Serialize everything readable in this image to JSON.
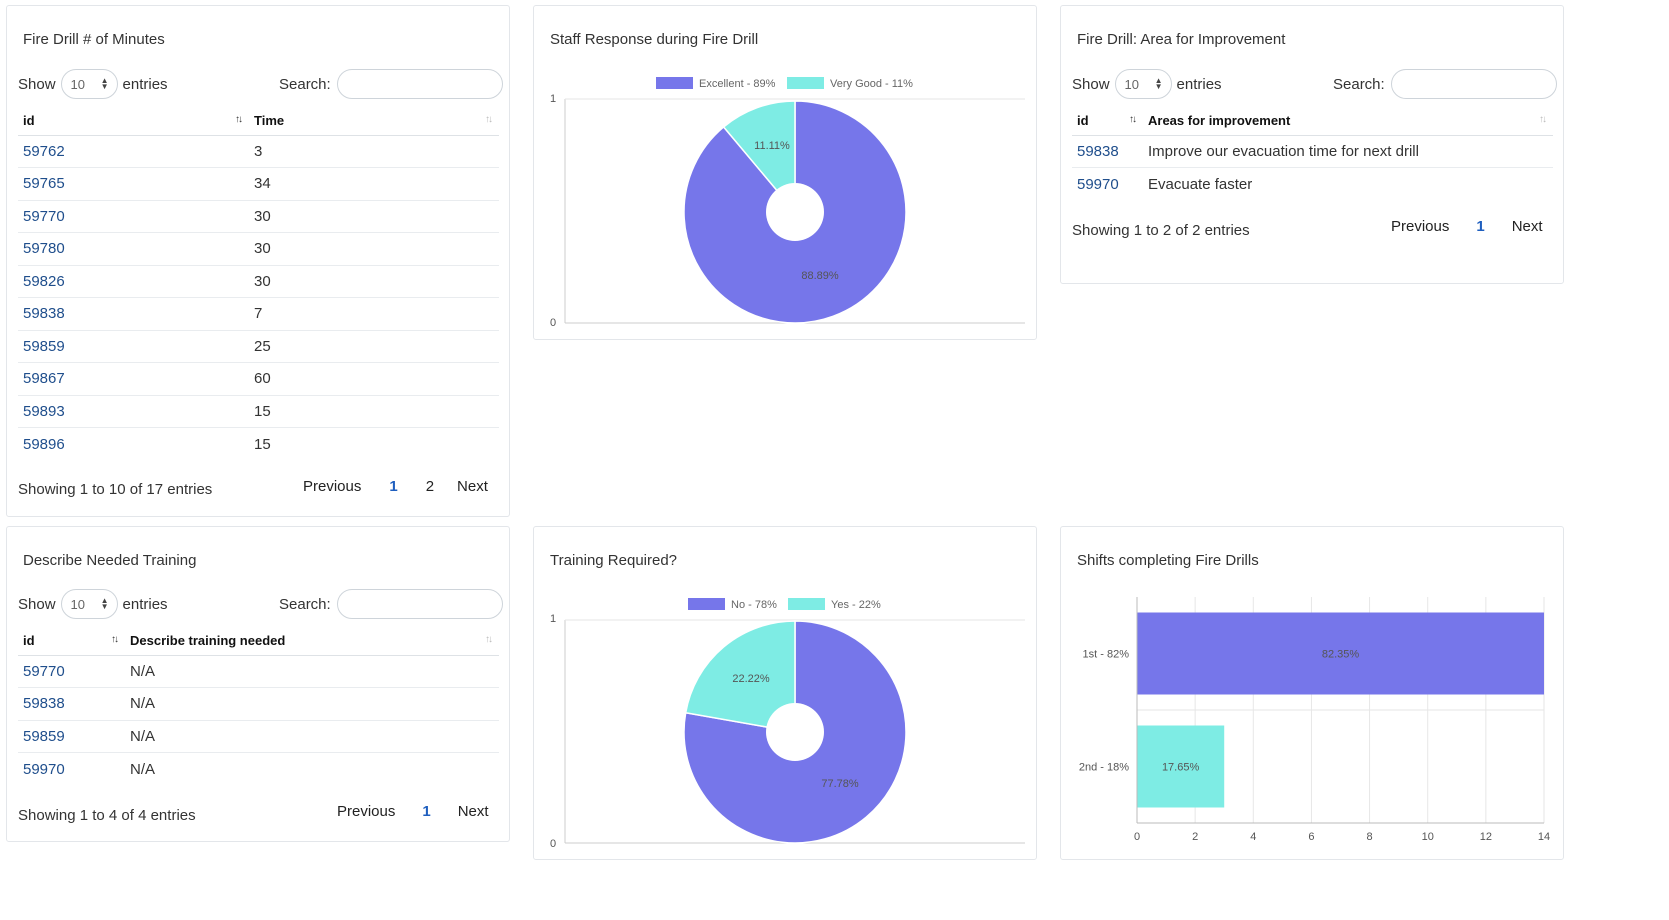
{
  "colors": {
    "purple": "#7676ea",
    "cyan": "#7eece4",
    "link": "#1f4e8c",
    "page_current": "#1f5fbf"
  },
  "minutes_card": {
    "title": "Fire Drill # of Minutes",
    "show_label": "Show",
    "entries_label": "entries",
    "page_size": "10",
    "search_label": "Search:",
    "columns": [
      "id",
      "Time"
    ],
    "rows": [
      [
        "59762",
        "3"
      ],
      [
        "59765",
        "34"
      ],
      [
        "59770",
        "30"
      ],
      [
        "59780",
        "30"
      ],
      [
        "59826",
        "30"
      ],
      [
        "59838",
        "7"
      ],
      [
        "59859",
        "25"
      ],
      [
        "59867",
        "60"
      ],
      [
        "59893",
        "15"
      ],
      [
        "59896",
        "15"
      ]
    ],
    "info": "Showing 1 to 10 of 17 entries",
    "pager": {
      "previous": "Previous",
      "pages": [
        "1",
        "2"
      ],
      "current": "1",
      "next": "Next"
    }
  },
  "staff_response_card": {
    "title": "Staff Response during Fire Drill",
    "chart_data": {
      "type": "pie",
      "title": "Staff Response during Fire Drill",
      "legend": [
        "Excellent - 89%",
        "Very Good - 11%"
      ],
      "legend_position": "top",
      "slices": [
        {
          "label": "Excellent",
          "value": 88.89,
          "data_label": "88.89%",
          "color": "#7676ea"
        },
        {
          "label": "Very Good",
          "value": 11.11,
          "data_label": "11.11%",
          "color": "#7eece4"
        }
      ],
      "y_ticks": [
        "1",
        "0"
      ],
      "donut": true
    }
  },
  "improvement_card": {
    "title": "Fire Drill: Area for Improvement",
    "show_label": "Show",
    "entries_label": "entries",
    "page_size": "10",
    "search_label": "Search:",
    "columns": [
      "id",
      "Areas for improvement"
    ],
    "rows": [
      [
        "59838",
        "Improve our evacuation time for next drill"
      ],
      [
        "59970",
        "Evacuate faster"
      ]
    ],
    "info": "Showing 1 to 2 of 2 entries",
    "pager": {
      "previous": "Previous",
      "pages": [
        "1"
      ],
      "current": "1",
      "next": "Next"
    }
  },
  "training_card": {
    "title": "Describe Needed Training",
    "show_label": "Show",
    "entries_label": "entries",
    "page_size": "10",
    "search_label": "Search:",
    "columns": [
      "id",
      "Describe training needed"
    ],
    "rows": [
      [
        "59770",
        "N/A"
      ],
      [
        "59838",
        "N/A"
      ],
      [
        "59859",
        "N/A"
      ],
      [
        "59970",
        "N/A"
      ]
    ],
    "info": "Showing 1 to 4 of 4 entries",
    "pager": {
      "previous": "Previous",
      "pages": [
        "1"
      ],
      "current": "1",
      "next": "Next"
    }
  },
  "training_required_card": {
    "title": "Training Required?",
    "chart_data": {
      "type": "pie",
      "title": "Training Required?",
      "legend": [
        "No - 78%",
        "Yes - 22%"
      ],
      "legend_position": "top",
      "slices": [
        {
          "label": "No",
          "value": 77.78,
          "data_label": "77.78%",
          "color": "#7676ea"
        },
        {
          "label": "Yes",
          "value": 22.22,
          "data_label": "22.22%",
          "color": "#7eece4"
        }
      ],
      "y_ticks": [
        "1",
        "0"
      ],
      "donut": true
    }
  },
  "shifts_card": {
    "title": "Shifts completing Fire Drills",
    "chart_data": {
      "type": "bar",
      "orientation": "horizontal",
      "title": "Shifts completing Fire Drills",
      "categories": [
        "1st - 82%",
        "2nd - 18%"
      ],
      "values": [
        14,
        3
      ],
      "data_labels": [
        "82.35%",
        "17.65%"
      ],
      "colors": [
        "#7676ea",
        "#7eece4"
      ],
      "xlim": [
        0,
        14
      ],
      "x_ticks": [
        "0",
        "2",
        "4",
        "6",
        "8",
        "10",
        "12",
        "14"
      ],
      "grid": true
    }
  }
}
